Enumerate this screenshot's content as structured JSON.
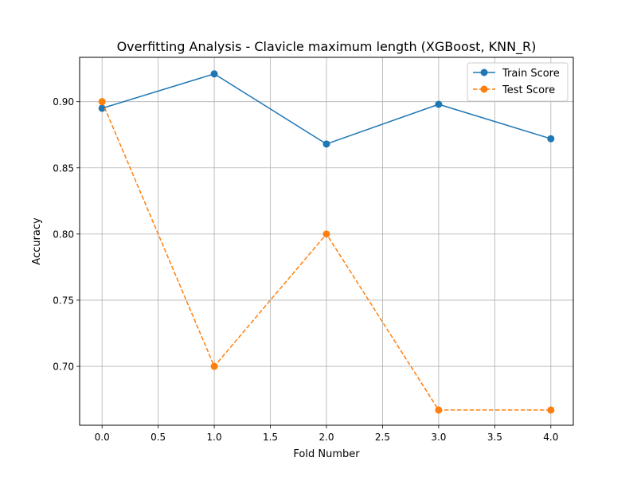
{
  "chart_data": {
    "type": "line",
    "title": "Overfitting Analysis - Clavicle maximum length (XGBoost, KNN_R)",
    "xlabel": "Fold Number",
    "ylabel": "Accuracy",
    "xlim": [
      -0.2,
      4.2
    ],
    "ylim": [
      0.6555,
      0.9335
    ],
    "x_ticks": [
      0.0,
      0.5,
      1.0,
      1.5,
      2.0,
      2.5,
      3.0,
      3.5,
      4.0
    ],
    "x_tick_labels": [
      "0.0",
      "0.5",
      "1.0",
      "1.5",
      "2.0",
      "2.5",
      "3.0",
      "3.5",
      "4.0"
    ],
    "y_ticks": [
      0.7,
      0.75,
      0.8,
      0.85,
      0.9
    ],
    "y_tick_labels": [
      "0.70",
      "0.75",
      "0.80",
      "0.85",
      "0.90"
    ],
    "grid": true,
    "legend_position": "top-right",
    "x": [
      0,
      1,
      2,
      3,
      4
    ],
    "series": [
      {
        "name": "Train Score",
        "values": [
          0.895,
          0.921,
          0.868,
          0.898,
          0.872
        ],
        "color": "#1f77b4",
        "line_style": "solid",
        "marker": "circle"
      },
      {
        "name": "Test Score",
        "values": [
          0.9,
          0.7,
          0.8,
          0.667,
          0.667
        ],
        "color": "#ff7f0e",
        "line_style": "dashed",
        "marker": "circle"
      }
    ]
  }
}
